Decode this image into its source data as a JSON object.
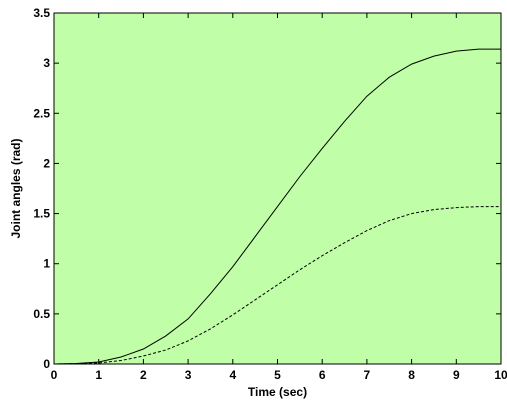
{
  "chart_data": {
    "type": "line",
    "title": "",
    "xlabel": "Time (sec)",
    "ylabel": "Joint angles (rad)",
    "xlim": [
      0,
      10
    ],
    "ylim": [
      0,
      3.5
    ],
    "x_ticks": [
      0,
      1,
      2,
      3,
      4,
      5,
      6,
      7,
      8,
      9,
      10
    ],
    "y_ticks": [
      "0",
      "0.5",
      "1",
      "1.5",
      "2",
      "2.5",
      "3",
      "3.5"
    ],
    "y_tick_values": [
      0,
      0.5,
      1,
      1.5,
      2,
      2.5,
      3,
      3.5
    ],
    "grid": false,
    "legend": "none",
    "background_color": "#c0ffa8",
    "series": [
      {
        "style": "solid",
        "color": "#000000",
        "x": [
          0,
          0.5,
          1,
          1.5,
          2,
          2.5,
          3,
          3.5,
          4,
          4.5,
          5,
          5.5,
          6,
          6.5,
          7,
          7.5,
          8,
          8.5,
          9,
          9.5,
          10
        ],
        "y": [
          0,
          0.005,
          0.02,
          0.07,
          0.15,
          0.28,
          0.45,
          0.7,
          0.97,
          1.27,
          1.57,
          1.87,
          2.15,
          2.42,
          2.67,
          2.86,
          2.99,
          3.07,
          3.12,
          3.14,
          3.14
        ]
      },
      {
        "style": "dashed",
        "color": "#000000",
        "x": [
          0,
          0.5,
          1,
          1.5,
          2,
          2.5,
          3,
          3.5,
          4,
          4.5,
          5,
          5.5,
          6,
          6.5,
          7,
          7.5,
          8,
          8.5,
          9,
          9.5,
          10
        ],
        "y": [
          0,
          0.003,
          0.01,
          0.035,
          0.08,
          0.14,
          0.23,
          0.35,
          0.49,
          0.64,
          0.79,
          0.94,
          1.08,
          1.21,
          1.33,
          1.43,
          1.5,
          1.54,
          1.56,
          1.57,
          1.57
        ]
      }
    ]
  }
}
